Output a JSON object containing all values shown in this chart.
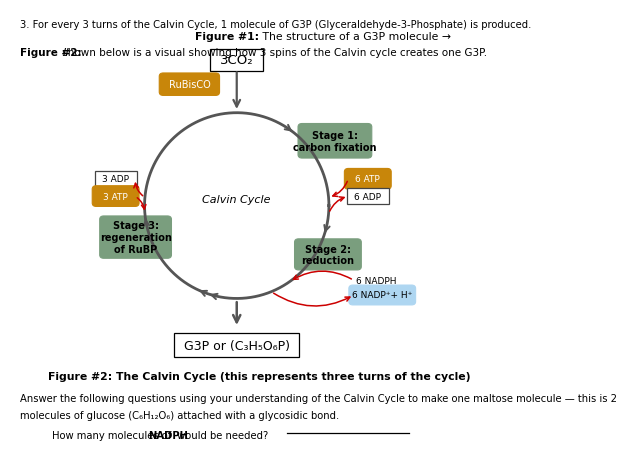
{
  "bg_color": "#ffffff",
  "title_line1": "3. For every 3 turns of the Calvin Cycle, 1 molecule of G3P (Glyceraldehyde-3-Phosphate) is produced.",
  "figure1_label": "Figure #1:",
  "figure1_text": " The structure of a G3P molecule →",
  "figure2_label": "Figure #2:",
  "figure2_text": " shown below is a visual showing how 3 spins of the Calvin cycle creates one G3P.",
  "co2_box_text": "3CO₂",
  "rubisco_text": "RuBisCO",
  "rubisco_color": "#c8860a",
  "calvin_cycle_text": "Calvin Cycle",
  "stage1_text": "Stage 1:\ncarbon fixation",
  "stage1_color": "#7a9e7e",
  "stage2_text": "Stage 2:\nreduction",
  "stage2_color": "#7a9e7e",
  "stage3_text": "Stage 3:\nregeneration\nof RuBP",
  "stage3_color": "#7a9e7e",
  "adp3_text": "3 ADP",
  "atp3_text": "3 ATP",
  "atp3_color": "#c8860a",
  "atp6_text": "6 ATP",
  "atp6_color": "#c8860a",
  "adp6_text": "6 ADP",
  "nadph_text": "6 NADPH",
  "nadp_text": "6 NADP⁺+ H⁺",
  "nadp_color": "#aed6f1",
  "g3p_box_text": "G3P or (C₃H₅O₆P)",
  "figure2_caption": "Figure #2: The Calvin Cycle (this represents three turns of the cycle)",
  "answer_line1": "Answer the following questions using your understanding of the Calvin Cycle to make one maltose molecule — this is 2",
  "answer_line2": "molecules of glucose (C₆H₁₂O₆) attached with a glycosidic bond.",
  "question_pre": "How many molecules of ",
  "question_bold": "NADPH",
  "question_post": " would be needed?",
  "arrow_color": "#555555",
  "red_arrow_color": "#cc0000"
}
